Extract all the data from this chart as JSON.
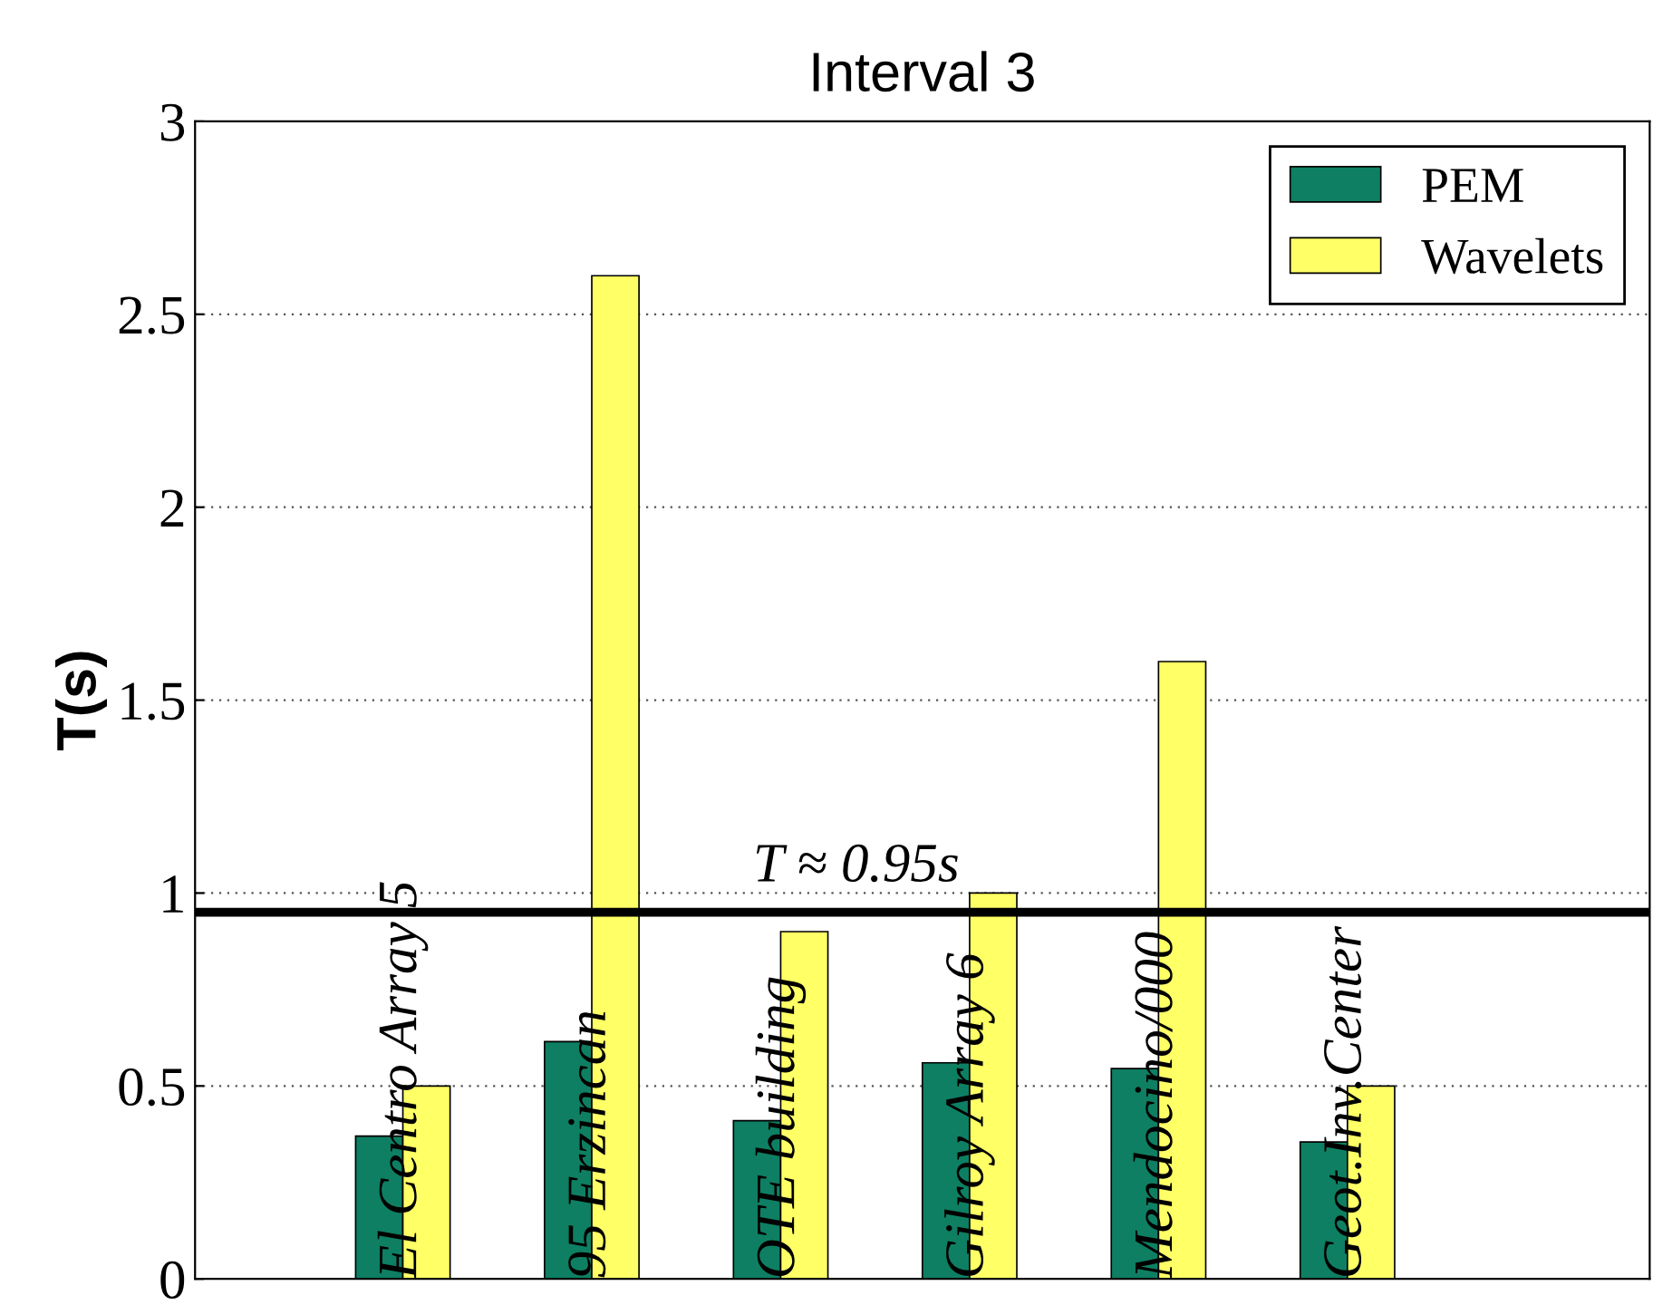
{
  "chart_data": {
    "type": "bar",
    "title": "Interval 3",
    "ylabel": "T(s)",
    "categories": [
      "El Centro Array 5",
      "95 Erzincan",
      "OTE building",
      "Gilroy Array 6",
      "Mendocino/000",
      "Geot.Inv.Center"
    ],
    "series": [
      {
        "name": "PEM",
        "color": "#0e7f62",
        "values": [
          0.37,
          0.615,
          0.41,
          0.56,
          0.545,
          0.355
        ]
      },
      {
        "name": "Wavelets",
        "color": "#ffff66",
        "values": [
          0.5,
          2.6,
          0.9,
          1.0,
          1.6,
          0.5
        ]
      }
    ],
    "ylim": [
      0,
      3
    ],
    "yticks": [
      0,
      0.5,
      1,
      1.5,
      2,
      2.5,
      3
    ],
    "grid": "y",
    "legend": "top right",
    "tick_labels": "y",
    "ref_lines": [
      {
        "axis": "y",
        "value": 0.95,
        "label": "T ≈ 0.95s",
        "color": "#000000"
      }
    ]
  }
}
